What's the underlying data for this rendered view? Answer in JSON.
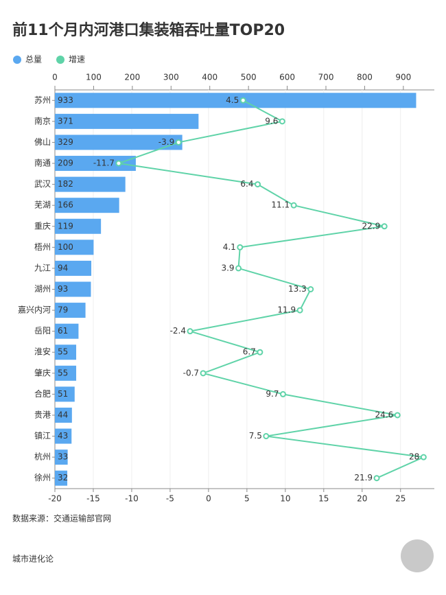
{
  "chart_data": {
    "type": "bar",
    "title": "前11个月内河港口集装箱吞吐量TOP20",
    "categories": [
      "苏州",
      "南京",
      "佛山",
      "南通",
      "武汉",
      "芜湖",
      "重庆",
      "梧州",
      "九江",
      "湖州",
      "嘉兴内河",
      "岳阳",
      "淮安",
      "肇庆",
      "合肥",
      "贵港",
      "镇江",
      "杭州",
      "徐州"
    ],
    "series": [
      {
        "name": "总量",
        "color": "#5aa8f0",
        "values": [
          933,
          371,
          329,
          209,
          182,
          166,
          119,
          100,
          94,
          93,
          79,
          61,
          55,
          55,
          51,
          44,
          43,
          33,
          32
        ]
      },
      {
        "name": "增速",
        "color": "#5fd3a8",
        "axis": "x2",
        "type": "line",
        "values": [
          4.5,
          9.6,
          -3.9,
          -11.7,
          6.4,
          11.1,
          22.9,
          4.1,
          3.9,
          13.3,
          11.9,
          -2.4,
          6.7,
          -0.7,
          9.7,
          24.6,
          7.5,
          28,
          21.9
        ]
      }
    ],
    "xlim": [
      0,
      980
    ],
    "xticks": [
      0,
      100,
      200,
      300,
      400,
      500,
      600,
      700,
      800,
      900
    ],
    "x2lim": [
      -20,
      29.4
    ],
    "x2ticks": [
      -20,
      -15,
      -10,
      -5,
      0,
      5,
      10,
      15,
      20,
      25
    ],
    "grid": true,
    "legend": "top-left"
  },
  "source": "数据来源：交通运输部官网",
  "brand": "城市进化论"
}
